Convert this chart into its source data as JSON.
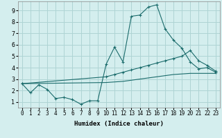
{
  "background_color": "#d4eeee",
  "grid_color": "#aed4d4",
  "line_color": "#1a6b6b",
  "xlabel": "Humidex (Indice chaleur)",
  "xlim": [
    -0.5,
    23.5
  ],
  "ylim": [
    0.5,
    9.8
  ],
  "yticks": [
    1,
    2,
    3,
    4,
    5,
    6,
    7,
    8,
    9
  ],
  "xticks": [
    0,
    1,
    2,
    3,
    4,
    5,
    6,
    7,
    8,
    9,
    10,
    11,
    12,
    13,
    14,
    15,
    16,
    17,
    18,
    19,
    20,
    21,
    22,
    23
  ],
  "line1_x": [
    0,
    1,
    2,
    3,
    4,
    5,
    6,
    7,
    8,
    9,
    10,
    11,
    12,
    13,
    14,
    15,
    16,
    17,
    18,
    19,
    20,
    21,
    22,
    23
  ],
  "line1_y": [
    2.6,
    1.8,
    2.5,
    2.1,
    1.3,
    1.4,
    1.2,
    0.8,
    1.1,
    1.1,
    4.3,
    5.8,
    4.5,
    8.5,
    8.6,
    9.3,
    9.5,
    7.4,
    6.4,
    5.7,
    4.5,
    3.9,
    4.0,
    3.6
  ],
  "line2_x": [
    0,
    10,
    11,
    12,
    13,
    14,
    15,
    16,
    17,
    18,
    19,
    20,
    21,
    22,
    23
  ],
  "line2_y": [
    2.6,
    3.2,
    3.4,
    3.6,
    3.8,
    4.0,
    4.2,
    4.4,
    4.6,
    4.8,
    5.0,
    5.5,
    4.6,
    4.2,
    3.7
  ],
  "line3_x": [
    0,
    10,
    11,
    12,
    13,
    14,
    15,
    16,
    17,
    18,
    19,
    20,
    21,
    22,
    23
  ],
  "line3_y": [
    2.6,
    2.7,
    2.75,
    2.8,
    2.9,
    3.0,
    3.1,
    3.2,
    3.3,
    3.4,
    3.45,
    3.5,
    3.5,
    3.5,
    3.5
  ],
  "tick_fontsize": 5.5,
  "xlabel_fontsize": 6.5,
  "ylabel_fontsize": 6
}
